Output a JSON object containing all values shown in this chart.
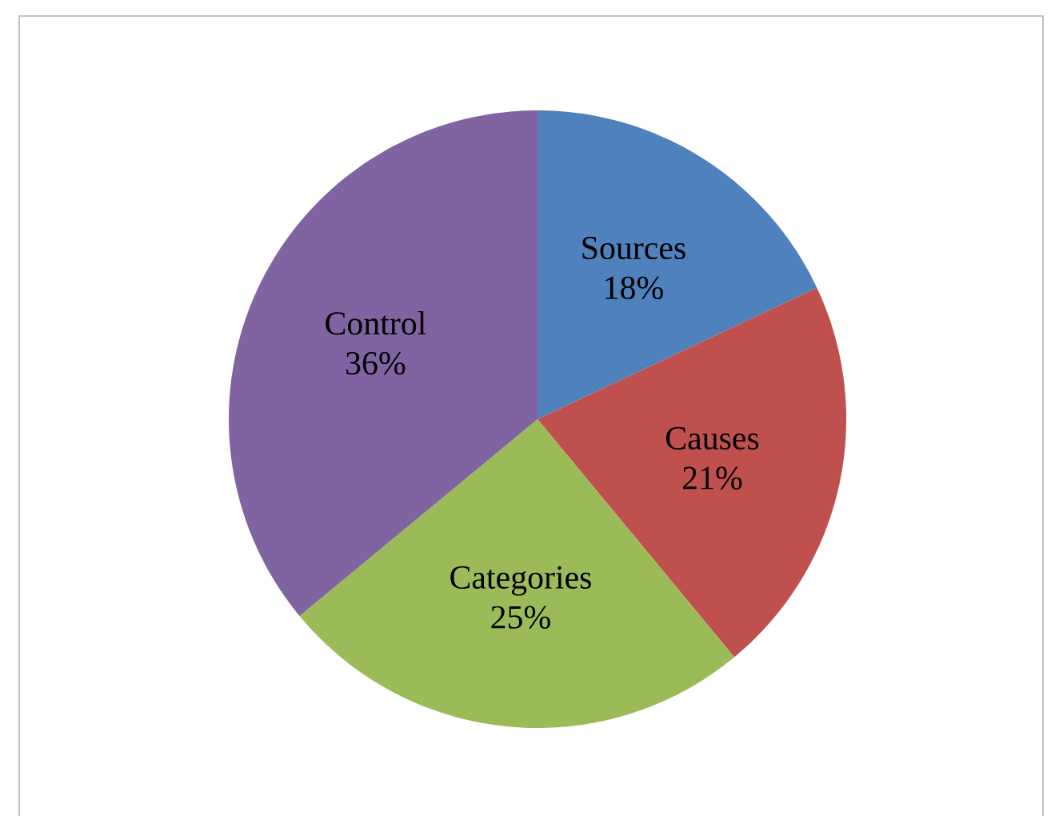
{
  "chart_data": {
    "type": "pie",
    "categories": [
      "Sources",
      "Causes",
      "Categories",
      "Control"
    ],
    "values": [
      18,
      21,
      25,
      36
    ],
    "value_labels": [
      "18%",
      "21%",
      "25%",
      "36%"
    ],
    "colors": [
      "#4f81bd",
      "#c0504d",
      "#9bbb59",
      "#8064a2"
    ]
  }
}
